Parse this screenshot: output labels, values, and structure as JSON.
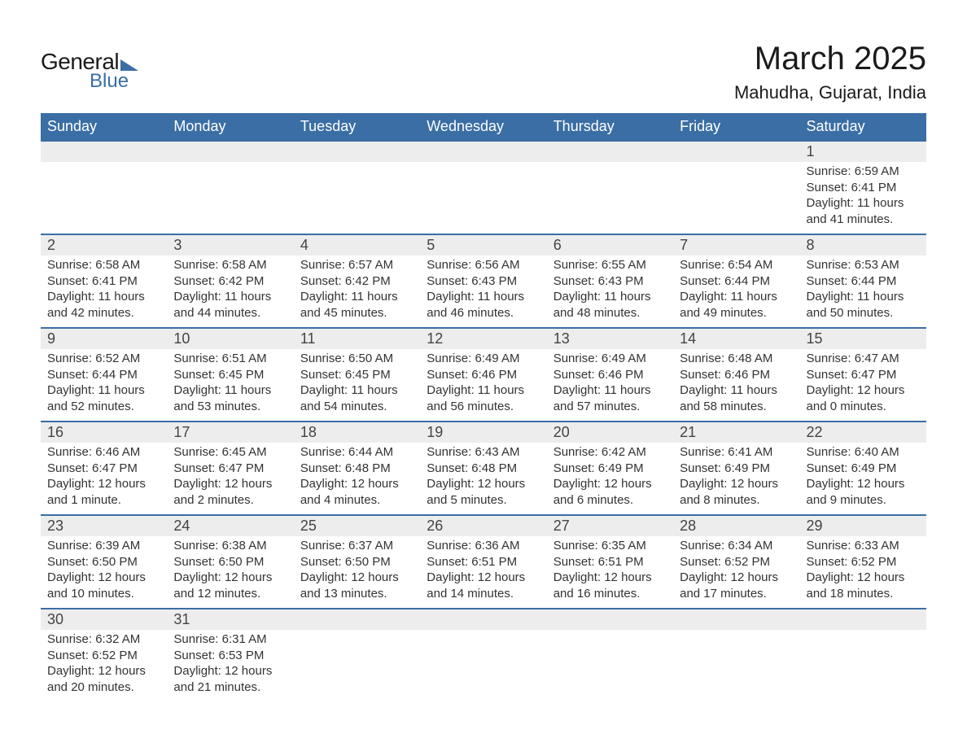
{
  "colors": {
    "header_bg": "#3a6ea5",
    "header_text": "#ffffff",
    "daynum_bg": "#ededed",
    "text": "#333333",
    "row_border": "#3a6ea5"
  },
  "logo": {
    "text1": "General",
    "text2": "Blue"
  },
  "title": "March 2025",
  "location": "Mahudha, Gujarat, India",
  "weekdays": [
    "Sunday",
    "Monday",
    "Tuesday",
    "Wednesday",
    "Thursday",
    "Friday",
    "Saturday"
  ],
  "weeks": [
    [
      null,
      null,
      null,
      null,
      null,
      null,
      {
        "n": "1",
        "sunrise": "6:59 AM",
        "sunset": "6:41 PM",
        "daylight": "11 hours and 41 minutes."
      }
    ],
    [
      {
        "n": "2",
        "sunrise": "6:58 AM",
        "sunset": "6:41 PM",
        "daylight": "11 hours and 42 minutes."
      },
      {
        "n": "3",
        "sunrise": "6:58 AM",
        "sunset": "6:42 PM",
        "daylight": "11 hours and 44 minutes."
      },
      {
        "n": "4",
        "sunrise": "6:57 AM",
        "sunset": "6:42 PM",
        "daylight": "11 hours and 45 minutes."
      },
      {
        "n": "5",
        "sunrise": "6:56 AM",
        "sunset": "6:43 PM",
        "daylight": "11 hours and 46 minutes."
      },
      {
        "n": "6",
        "sunrise": "6:55 AM",
        "sunset": "6:43 PM",
        "daylight": "11 hours and 48 minutes."
      },
      {
        "n": "7",
        "sunrise": "6:54 AM",
        "sunset": "6:44 PM",
        "daylight": "11 hours and 49 minutes."
      },
      {
        "n": "8",
        "sunrise": "6:53 AM",
        "sunset": "6:44 PM",
        "daylight": "11 hours and 50 minutes."
      }
    ],
    [
      {
        "n": "9",
        "sunrise": "6:52 AM",
        "sunset": "6:44 PM",
        "daylight": "11 hours and 52 minutes."
      },
      {
        "n": "10",
        "sunrise": "6:51 AM",
        "sunset": "6:45 PM",
        "daylight": "11 hours and 53 minutes."
      },
      {
        "n": "11",
        "sunrise": "6:50 AM",
        "sunset": "6:45 PM",
        "daylight": "11 hours and 54 minutes."
      },
      {
        "n": "12",
        "sunrise": "6:49 AM",
        "sunset": "6:46 PM",
        "daylight": "11 hours and 56 minutes."
      },
      {
        "n": "13",
        "sunrise": "6:49 AM",
        "sunset": "6:46 PM",
        "daylight": "11 hours and 57 minutes."
      },
      {
        "n": "14",
        "sunrise": "6:48 AM",
        "sunset": "6:46 PM",
        "daylight": "11 hours and 58 minutes."
      },
      {
        "n": "15",
        "sunrise": "6:47 AM",
        "sunset": "6:47 PM",
        "daylight": "12 hours and 0 minutes."
      }
    ],
    [
      {
        "n": "16",
        "sunrise": "6:46 AM",
        "sunset": "6:47 PM",
        "daylight": "12 hours and 1 minute."
      },
      {
        "n": "17",
        "sunrise": "6:45 AM",
        "sunset": "6:47 PM",
        "daylight": "12 hours and 2 minutes."
      },
      {
        "n": "18",
        "sunrise": "6:44 AM",
        "sunset": "6:48 PM",
        "daylight": "12 hours and 4 minutes."
      },
      {
        "n": "19",
        "sunrise": "6:43 AM",
        "sunset": "6:48 PM",
        "daylight": "12 hours and 5 minutes."
      },
      {
        "n": "20",
        "sunrise": "6:42 AM",
        "sunset": "6:49 PM",
        "daylight": "12 hours and 6 minutes."
      },
      {
        "n": "21",
        "sunrise": "6:41 AM",
        "sunset": "6:49 PM",
        "daylight": "12 hours and 8 minutes."
      },
      {
        "n": "22",
        "sunrise": "6:40 AM",
        "sunset": "6:49 PM",
        "daylight": "12 hours and 9 minutes."
      }
    ],
    [
      {
        "n": "23",
        "sunrise": "6:39 AM",
        "sunset": "6:50 PM",
        "daylight": "12 hours and 10 minutes."
      },
      {
        "n": "24",
        "sunrise": "6:38 AM",
        "sunset": "6:50 PM",
        "daylight": "12 hours and 12 minutes."
      },
      {
        "n": "25",
        "sunrise": "6:37 AM",
        "sunset": "6:50 PM",
        "daylight": "12 hours and 13 minutes."
      },
      {
        "n": "26",
        "sunrise": "6:36 AM",
        "sunset": "6:51 PM",
        "daylight": "12 hours and 14 minutes."
      },
      {
        "n": "27",
        "sunrise": "6:35 AM",
        "sunset": "6:51 PM",
        "daylight": "12 hours and 16 minutes."
      },
      {
        "n": "28",
        "sunrise": "6:34 AM",
        "sunset": "6:52 PM",
        "daylight": "12 hours and 17 minutes."
      },
      {
        "n": "29",
        "sunrise": "6:33 AM",
        "sunset": "6:52 PM",
        "daylight": "12 hours and 18 minutes."
      }
    ],
    [
      {
        "n": "30",
        "sunrise": "6:32 AM",
        "sunset": "6:52 PM",
        "daylight": "12 hours and 20 minutes."
      },
      {
        "n": "31",
        "sunrise": "6:31 AM",
        "sunset": "6:53 PM",
        "daylight": "12 hours and 21 minutes."
      },
      null,
      null,
      null,
      null,
      null
    ]
  ],
  "labels": {
    "sunrise": "Sunrise: ",
    "sunset": "Sunset: ",
    "daylight": "Daylight: "
  }
}
